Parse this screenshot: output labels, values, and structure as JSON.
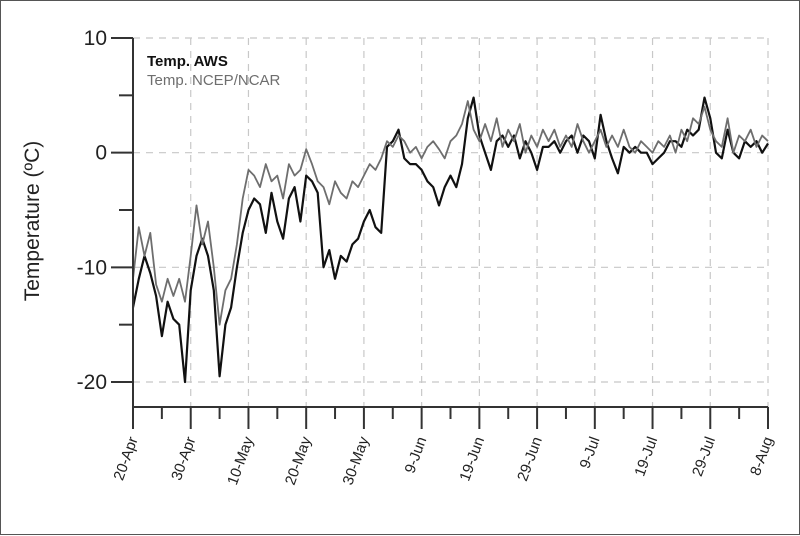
{
  "chart_data": {
    "type": "line",
    "title": "",
    "xlabel": "",
    "ylabel": "Temperature (ºC)",
    "x_unit": "days since 20-Apr",
    "xlim": [
      0,
      110
    ],
    "ylim": [
      -22,
      10
    ],
    "x_ticks": [
      {
        "day": 0,
        "label": "20-Apr"
      },
      {
        "day": 10,
        "label": "30-Apr"
      },
      {
        "day": 20,
        "label": "10-May"
      },
      {
        "day": 30,
        "label": "20-May"
      },
      {
        "day": 40,
        "label": "30-May"
      },
      {
        "day": 50,
        "label": "9-Jun"
      },
      {
        "day": 60,
        "label": "19-Jun"
      },
      {
        "day": 70,
        "label": "29-Jun"
      },
      {
        "day": 80,
        "label": "9-Jul"
      },
      {
        "day": 90,
        "label": "19-Jul"
      },
      {
        "day": 100,
        "label": "29-Jul"
      },
      {
        "day": 110,
        "label": "8-Aug"
      }
    ],
    "y_ticks": [
      {
        "value": 10,
        "label": "10"
      },
      {
        "value": 0,
        "label": "0"
      },
      {
        "value": -10,
        "label": "-10"
      },
      {
        "value": -20,
        "label": "-20"
      }
    ],
    "grid": true,
    "legend_position": "top-left",
    "series": [
      {
        "name": "Temp. AWS",
        "color": "#111111",
        "x": [
          0,
          1,
          2,
          3,
          4,
          5,
          6,
          7,
          8,
          9,
          10,
          11,
          12,
          13,
          14,
          15,
          16,
          17,
          18,
          19,
          20,
          21,
          22,
          23,
          24,
          25,
          26,
          27,
          28,
          29,
          30,
          31,
          32,
          33,
          34,
          35,
          36,
          37,
          38,
          39,
          40,
          41,
          42,
          43,
          44,
          45,
          46,
          47,
          48,
          49,
          50,
          51,
          52,
          53,
          54,
          55,
          56,
          57,
          58,
          59,
          60,
          61,
          62,
          63,
          64,
          65,
          66,
          67,
          68,
          69,
          70,
          71,
          72,
          73,
          74,
          75,
          76,
          77,
          78,
          79,
          80,
          81,
          82,
          83,
          84,
          85,
          86,
          87,
          88,
          89,
          90,
          91,
          92,
          93,
          94,
          95,
          96,
          97,
          98,
          99,
          100,
          101,
          102,
          103,
          104,
          105,
          106,
          107,
          108,
          109,
          110
        ],
        "y": [
          -13.5,
          -11,
          -9,
          -10.5,
          -12.5,
          -16,
          -13,
          -14.5,
          -15,
          -20,
          -12,
          -9,
          -7.5,
          -9,
          -12,
          -19.5,
          -15,
          -13.5,
          -10,
          -7,
          -5,
          -4,
          -4.5,
          -7,
          -3.5,
          -6,
          -7.5,
          -4,
          -3,
          -6,
          -2,
          -2.5,
          -3.5,
          -10,
          -8.5,
          -11,
          -9,
          -9.5,
          -8,
          -7.5,
          -6,
          -5,
          -6.5,
          -7,
          0.5,
          1,
          2,
          -0.5,
          -1,
          -1,
          -1.5,
          -2.5,
          -3,
          -4.6,
          -3,
          -2,
          -3,
          -1,
          3,
          4.8,
          1.5,
          0,
          -1.5,
          1,
          1.5,
          0.5,
          1.5,
          -0.5,
          1,
          0,
          -1.5,
          0.5,
          0.5,
          1,
          0,
          1,
          1.5,
          0,
          1.5,
          1,
          -0.5,
          3.3,
          1,
          -0.5,
          -1.8,
          0.5,
          0,
          0.5,
          0,
          0,
          -1,
          -0.5,
          0,
          1,
          1,
          0.5,
          2,
          1.5,
          2,
          4.8,
          3,
          0,
          -0.5,
          2,
          0,
          -0.5,
          1,
          0.5,
          1,
          0,
          0.8
        ]
      },
      {
        "name": "Temp. NCEP/NCAR",
        "color": "#6e6e6e",
        "x": [
          0,
          1,
          2,
          3,
          4,
          5,
          6,
          7,
          8,
          9,
          10,
          11,
          12,
          13,
          14,
          15,
          16,
          17,
          18,
          19,
          20,
          21,
          22,
          23,
          24,
          25,
          26,
          27,
          28,
          29,
          30,
          31,
          32,
          33,
          34,
          35,
          36,
          37,
          38,
          39,
          40,
          41,
          42,
          43,
          44,
          45,
          46,
          47,
          48,
          49,
          50,
          51,
          52,
          53,
          54,
          55,
          56,
          57,
          58,
          59,
          60,
          61,
          62,
          63,
          64,
          65,
          66,
          67,
          68,
          69,
          70,
          71,
          72,
          73,
          74,
          75,
          76,
          77,
          78,
          79,
          80,
          81,
          82,
          83,
          84,
          85,
          86,
          87,
          88,
          89,
          90,
          91,
          92,
          93,
          94,
          95,
          96,
          97,
          98,
          99,
          100,
          101,
          102,
          103,
          104,
          105,
          106,
          107,
          108,
          109,
          110
        ],
        "y": [
          -11,
          -6.5,
          -9,
          -7,
          -11.5,
          -13,
          -11,
          -12.5,
          -11,
          -13,
          -9,
          -4.6,
          -8,
          -6,
          -10,
          -15,
          -12,
          -11,
          -8,
          -4,
          -1.5,
          -2,
          -3,
          -1,
          -2.5,
          -2,
          -4,
          -1,
          -2,
          -1.5,
          0.3,
          -1,
          -2.5,
          -3,
          -4.5,
          -2.5,
          -3.5,
          -4,
          -2.5,
          -3,
          -2,
          -1,
          -1.5,
          -0.5,
          1,
          0.5,
          1.5,
          1,
          0,
          0.5,
          -0.5,
          0.5,
          1,
          0.3,
          -0.5,
          1,
          1.5,
          2.5,
          4.5,
          2,
          1,
          2.5,
          1,
          3,
          0.5,
          2,
          1,
          2.5,
          0,
          1.5,
          0.5,
          2,
          1,
          2,
          0.5,
          1.5,
          0.5,
          2.5,
          1,
          0,
          1,
          2,
          0.5,
          1.5,
          0.5,
          2,
          0.5,
          0,
          1,
          0.5,
          0,
          1,
          0.5,
          1.5,
          0,
          2,
          1,
          3,
          2.5,
          4,
          2,
          1,
          0.5,
          3,
          0,
          1.5,
          1,
          2,
          0.5,
          1.5,
          1
        ]
      }
    ]
  }
}
